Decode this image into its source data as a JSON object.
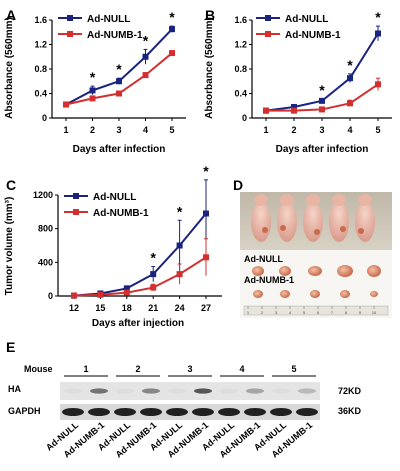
{
  "colors": {
    "null_series": "#1a237e",
    "numb_series": "#d32f2f"
  },
  "chart_data": [
    {
      "type": "line",
      "panel": "A",
      "xlabel": "Days after infection",
      "ylabel": "Absorbance (560mm)",
      "x": [
        1,
        2,
        3,
        4,
        5
      ],
      "ylim": [
        0,
        1.6
      ],
      "yticks": [
        "0",
        "0.4",
        "0.8",
        "1.2",
        "1.6"
      ],
      "series": [
        {
          "name": "Ad-NULL",
          "color": "#1a237e",
          "values": [
            0.22,
            0.45,
            0.6,
            1.0,
            1.45
          ],
          "err": [
            0.03,
            0.07,
            0.05,
            0.12,
            0.05
          ]
        },
        {
          "name": "Ad-NUMB-1",
          "color": "#d32f2f",
          "values": [
            0.22,
            0.32,
            0.4,
            0.7,
            1.06
          ],
          "err": [
            0.02,
            0.03,
            0.03,
            0.04,
            0.03
          ]
        }
      ],
      "sig_x": [
        2,
        3,
        4,
        5
      ],
      "sig_mark": "*"
    },
    {
      "type": "line",
      "panel": "B",
      "xlabel": "Days after infection",
      "ylabel": "Absorbance (560mm)",
      "x": [
        1,
        2,
        3,
        4,
        5
      ],
      "ylim": [
        0,
        1.6
      ],
      "yticks": [
        "0",
        "0.4",
        "0.8",
        "1.2",
        "1.6"
      ],
      "series": [
        {
          "name": "Ad-NULL",
          "color": "#1a237e",
          "values": [
            0.12,
            0.18,
            0.28,
            0.65,
            1.38
          ],
          "err": [
            0.02,
            0.03,
            0.03,
            0.07,
            0.12
          ]
        },
        {
          "name": "Ad-NUMB-1",
          "color": "#d32f2f",
          "values": [
            0.12,
            0.12,
            0.14,
            0.24,
            0.55
          ],
          "err": [
            0.02,
            0.02,
            0.03,
            0.05,
            0.1
          ]
        }
      ],
      "sig_x": [
        3,
        4,
        5
      ],
      "sig_mark": "*"
    },
    {
      "type": "line",
      "panel": "C",
      "xlabel": "Days after injection",
      "ylabel": "Tumor volume (mm³)",
      "x": [
        12,
        15,
        18,
        21,
        24,
        27
      ],
      "ylim": [
        0,
        1200
      ],
      "yticks": [
        "0",
        "400",
        "800",
        "1200"
      ],
      "series": [
        {
          "name": "Ad-NULL",
          "color": "#1a237e",
          "values": [
            5,
            30,
            90,
            260,
            600,
            980
          ],
          "err": [
            5,
            10,
            30,
            90,
            300,
            400
          ]
        },
        {
          "name": "Ad-NUMB-1",
          "color": "#d32f2f",
          "values": [
            5,
            15,
            40,
            100,
            260,
            460
          ],
          "err": [
            5,
            8,
            20,
            40,
            120,
            220
          ]
        }
      ],
      "sig_x": [
        21,
        24,
        27
      ],
      "sig_mark": "*"
    }
  ],
  "panel_d": {
    "label": "D",
    "row1": "Ad-NULL",
    "row2": "Ad-NUMB-1",
    "ruler": [
      "1",
      "2",
      "3",
      "4",
      "5",
      "6",
      "7",
      "8",
      "9",
      "10"
    ]
  },
  "panel_e": {
    "label": "E",
    "mouse_label": "Mouse",
    "mice": [
      "1",
      "2",
      "3",
      "4",
      "5"
    ],
    "rows": [
      {
        "name": "HA",
        "kd": "72KD"
      },
      {
        "name": "GAPDH",
        "kd": "36KD"
      }
    ],
    "lanes": [
      "Ad-NULL",
      "Ad-NUMB-1",
      "Ad-NULL",
      "Ad-NUMB-1",
      "Ad-NULL",
      "Ad-NUMB-1",
      "Ad-NULL",
      "Ad-NUMB-1",
      "Ad-NULL",
      "Ad-NUMB-1"
    ],
    "ha_intensity": [
      0.02,
      0.55,
      0.02,
      0.45,
      0.02,
      0.7,
      0.02,
      0.3,
      0.02,
      0.2
    ]
  }
}
